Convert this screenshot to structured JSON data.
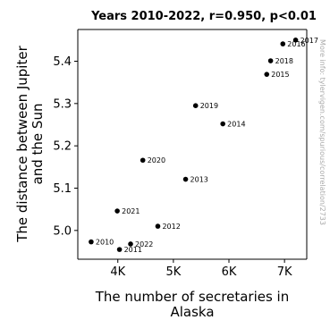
{
  "chart_data": {
    "type": "scatter",
    "title": "Years 2010-2022, r=0.950, p<0.01",
    "xlabel": [
      "The number of secretaries in",
      "Alaska"
    ],
    "ylabel": [
      "The distance between Jupiter",
      "and the Sun"
    ],
    "xlim": [
      3280,
      7400
    ],
    "ylim": [
      4.932,
      5.475
    ],
    "x_ticks": [
      {
        "value": 4000,
        "label": "4K"
      },
      {
        "value": 5000,
        "label": "5K"
      },
      {
        "value": 6000,
        "label": "6K"
      },
      {
        "value": 7000,
        "label": "7K"
      }
    ],
    "y_ticks": [
      {
        "value": 5.0,
        "label": "5.0"
      },
      {
        "value": 5.1,
        "label": "5.1"
      },
      {
        "value": 5.2,
        "label": "5.2"
      },
      {
        "value": 5.3,
        "label": "5.3"
      },
      {
        "value": 5.4,
        "label": "5.4"
      }
    ],
    "points": [
      {
        "label": "2010",
        "x": 3520,
        "y": 4.973
      },
      {
        "label": "2011",
        "x": 4030,
        "y": 4.955
      },
      {
        "label": "2012",
        "x": 4720,
        "y": 5.01
      },
      {
        "label": "2013",
        "x": 5220,
        "y": 5.121
      },
      {
        "label": "2014",
        "x": 5890,
        "y": 5.252
      },
      {
        "label": "2015",
        "x": 6680,
        "y": 5.369
      },
      {
        "label": "2016",
        "x": 6970,
        "y": 5.441
      },
      {
        "label": "2017",
        "x": 7200,
        "y": 5.45
      },
      {
        "label": "2018",
        "x": 6750,
        "y": 5.401
      },
      {
        "label": "2019",
        "x": 5400,
        "y": 5.295
      },
      {
        "label": "2020",
        "x": 4450,
        "y": 5.166
      },
      {
        "label": "2021",
        "x": 3990,
        "y": 5.046
      },
      {
        "label": "2022",
        "x": 4230,
        "y": 4.968
      }
    ],
    "side_note": "More info: tylervigen.com/spurious/correlation/2733",
    "grid": false
  }
}
